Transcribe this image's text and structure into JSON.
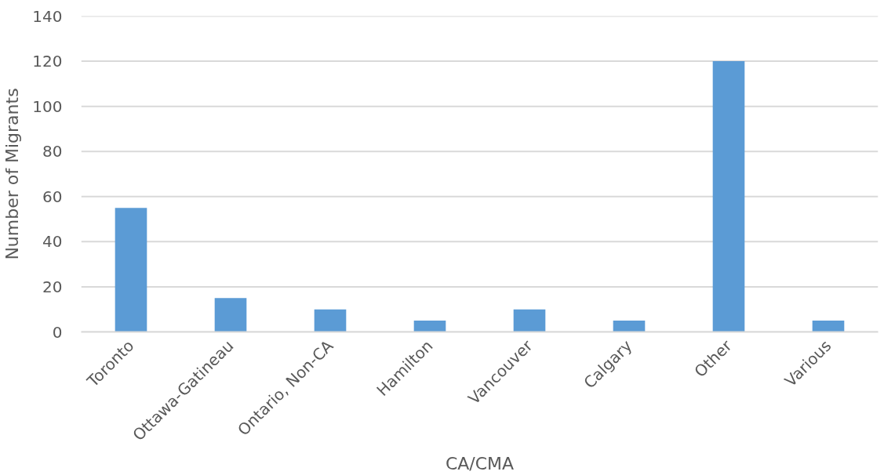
{
  "chart_data": {
    "type": "bar",
    "xlabel": "CA/CMA",
    "ylabel": "Number of Migrants",
    "categories": [
      "Toronto",
      "Ottawa-Gatineau",
      "Ontario, Non-CA",
      "Hamilton",
      "Vancouver",
      "Calgary",
      "Other",
      "Various"
    ],
    "values": [
      55,
      15,
      10,
      5,
      10,
      5,
      120,
      5
    ],
    "color": "#5b9bd5",
    "ylim": [
      0,
      140
    ],
    "yticks": [
      0,
      20,
      40,
      60,
      80,
      100,
      120,
      140
    ],
    "grid": "y"
  }
}
